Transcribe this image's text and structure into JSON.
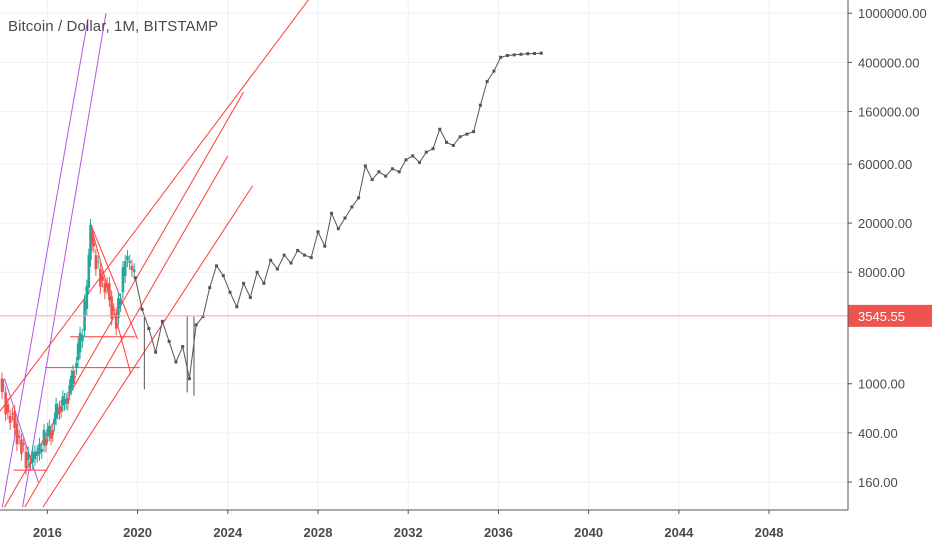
{
  "title": "Bitcoin / Dollar, 1M, BITSTAMP",
  "last_price_label": "3545.55",
  "colors": {
    "grid": "#eef0f3",
    "axis": "#555555",
    "up": "#26a69a",
    "down": "#ef5350",
    "projection": "#555555",
    "channel": "#ff3b3b",
    "fan": "#b455e6",
    "price_line": "#f4a4a4",
    "price_badge": "#ef5350"
  },
  "chart_data": {
    "type": "line",
    "title": "Bitcoin / Dollar, 1M, BITSTAMP",
    "xlabel": "",
    "ylabel": "",
    "scale_y": "log",
    "xlim": [
      2013.9,
      2051.5
    ],
    "ylim": [
      95,
      1280000
    ],
    "grid": true,
    "x_ticks": [
      "2016",
      "2020",
      "2024",
      "2028",
      "2032",
      "2036",
      "2040",
      "2044",
      "2048"
    ],
    "y_ticks": [
      "160.00",
      "400.00",
      "1000.00",
      "8000.00",
      "20000.00",
      "60000.00",
      "160000.00",
      "400000.00",
      "1000000.00"
    ],
    "y_tick_values": [
      160,
      400,
      1000,
      8000,
      20000,
      60000,
      160000,
      400000,
      1000000
    ],
    "last_price": 3545.55,
    "series": [
      {
        "values_x": [
          2013.95,
          2014.1,
          2014.3,
          2014.5,
          2014.7,
          2014.9,
          2015.1,
          2015.3,
          2015.5,
          2015.7,
          2015.9,
          2016.2,
          2016.5,
          2016.8,
          2017.1,
          2017.4,
          2017.6,
          2017.8,
          2017.95,
          2018.1,
          2018.3,
          2018.5,
          2018.7,
          2018.9,
          2019.1,
          2019.3,
          2019.5,
          2019.7,
          2019.9
        ],
        "values_y": [
          1100,
          850,
          550,
          600,
          380,
          330,
          240,
          230,
          260,
          280,
          360,
          420,
          650,
          700,
          1000,
          1800,
          2700,
          6000,
          17000,
          11000,
          8500,
          6500,
          6500,
          4000,
          3400,
          5500,
          10000,
          9000,
          7200
        ]
      },
      {
        "values_x": [
          2019.9,
          2020.2,
          2020.5,
          2020.8,
          2021.1,
          2021.4,
          2021.7,
          2022.0,
          2022.3,
          2022.6,
          2022.9,
          2023.2,
          2023.5,
          2023.8,
          2024.1,
          2024.4,
          2024.7,
          2025.0,
          2025.3,
          2025.6,
          2025.9,
          2026.2,
          2026.5,
          2026.8,
          2027.1,
          2027.4,
          2027.7,
          2028.0,
          2028.3,
          2028.6,
          2028.9,
          2029.2,
          2029.5,
          2029.8,
          2030.1,
          2030.4,
          2030.7,
          2031.0,
          2031.3,
          2031.6,
          2031.9,
          2032.2,
          2032.5,
          2032.8,
          2033.1,
          2033.4,
          2033.7,
          2034.0,
          2034.3,
          2034.6,
          2034.9,
          2035.2,
          2035.5,
          2035.8,
          2036.1,
          2036.4,
          2036.7,
          2037.0,
          2037.3,
          2037.6,
          2037.9
        ],
        "values_y": [
          7200,
          4000,
          2800,
          1800,
          3200,
          2200,
          1500,
          2000,
          1100,
          3000,
          3500,
          6000,
          9000,
          7500,
          5500,
          4200,
          6500,
          5000,
          8000,
          6500,
          10000,
          8500,
          11000,
          9500,
          12000,
          11000,
          10500,
          17000,
          13000,
          24000,
          18000,
          22000,
          27000,
          32000,
          58000,
          45000,
          52000,
          48000,
          55000,
          52000,
          65000,
          70000,
          62000,
          75000,
          80000,
          115000,
          90000,
          85000,
          100000,
          105000,
          110000,
          180000,
          280000,
          340000,
          440000,
          455000,
          460000,
          465000,
          470000,
          472000,
          475000
        ]
      }
    ]
  }
}
